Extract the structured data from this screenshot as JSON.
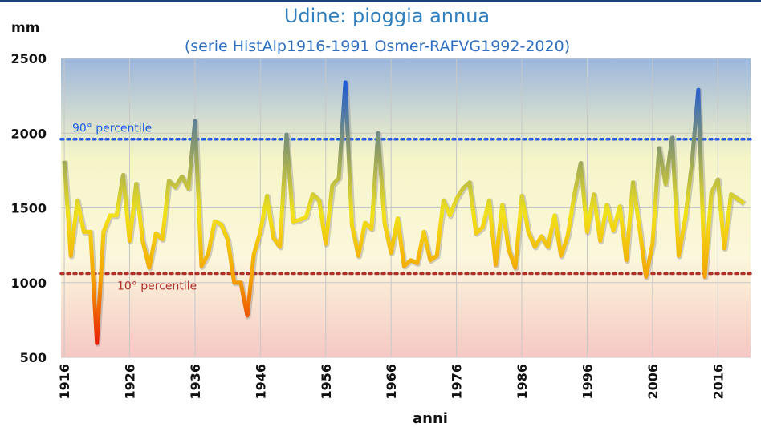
{
  "chart_data": {
    "type": "line",
    "title": "Udine: pioggia annua",
    "subtitle": "(serie HistAlp1916-1991 Osmer-RAFVG1992-2020)",
    "ylabel": "mm",
    "xlabel": "anni",
    "x": [
      1916,
      1917,
      1918,
      1919,
      1920,
      1921,
      1922,
      1923,
      1924,
      1925,
      1926,
      1927,
      1928,
      1929,
      1930,
      1931,
      1932,
      1933,
      1934,
      1935,
      1936,
      1937,
      1938,
      1939,
      1940,
      1941,
      1942,
      1943,
      1944,
      1945,
      1946,
      1947,
      1948,
      1949,
      1950,
      1951,
      1952,
      1953,
      1954,
      1955,
      1956,
      1957,
      1958,
      1959,
      1960,
      1961,
      1962,
      1963,
      1964,
      1965,
      1966,
      1967,
      1968,
      1969,
      1970,
      1971,
      1972,
      1973,
      1974,
      1975,
      1976,
      1977,
      1978,
      1979,
      1980,
      1981,
      1982,
      1983,
      1984,
      1985,
      1986,
      1987,
      1988,
      1989,
      1990,
      1991,
      1992,
      1993,
      1994,
      1995,
      1996,
      1997,
      1998,
      1999,
      2000,
      2001,
      2002,
      2003,
      2004,
      2005,
      2006,
      2007,
      2008,
      2009,
      2010,
      2011,
      2012,
      2013,
      2014,
      2015,
      2016,
      2017,
      2018,
      2019,
      2020
    ],
    "values": [
      1815,
      1180,
      1550,
      1340,
      1340,
      595,
      1340,
      1450,
      1450,
      1720,
      1280,
      1660,
      1280,
      1100,
      1330,
      1290,
      1680,
      1640,
      1710,
      1630,
      2080,
      1110,
      1190,
      1410,
      1390,
      1290,
      1000,
      1000,
      780,
      1190,
      1340,
      1580,
      1300,
      1240,
      1990,
      1410,
      1420,
      1440,
      1590,
      1550,
      1260,
      1650,
      1700,
      2340,
      1390,
      1180,
      1400,
      1360,
      2000,
      1400,
      1200,
      1430,
      1110,
      1150,
      1130,
      1340,
      1150,
      1180,
      1550,
      1450,
      1560,
      1630,
      1670,
      1330,
      1370,
      1550,
      1120,
      1520,
      1220,
      1100,
      1580,
      1340,
      1240,
      1310,
      1240,
      1450,
      1180,
      1310,
      1580,
      1800,
      1340,
      1590,
      1280,
      1520,
      1350,
      1510,
      1150,
      1670,
      1370,
      1040,
      1260,
      1900,
      1660,
      1970,
      1180,
      1430,
      1790,
      2290,
      1040,
      1600,
      1690,
      1230,
      1590,
      1560,
      1530
    ],
    "line_gradient": [
      "#1e5bd8",
      "#8a9a6a",
      "#f2e21a",
      "#f5a000",
      "#e81a00"
    ],
    "background_gradient": [
      "#9db7dc",
      "#f6f5c8",
      "#fbf7dc",
      "#f6c8c4"
    ],
    "xlim": [
      1915.5,
      2021
    ],
    "ylim": [
      500,
      2500
    ],
    "xticks": [
      1916,
      1926,
      1936,
      1946,
      1956,
      1966,
      1976,
      1986,
      1996,
      2006,
      2016
    ],
    "yticks": [
      500,
      1000,
      1500,
      2000,
      2500
    ],
    "grid": true,
    "reference_lines": [
      {
        "value": 1960,
        "label": "90° percentile",
        "color": "#1f5fe0"
      },
      {
        "value": 1060,
        "label": "10° percentile",
        "color": "#b0302a"
      }
    ]
  }
}
